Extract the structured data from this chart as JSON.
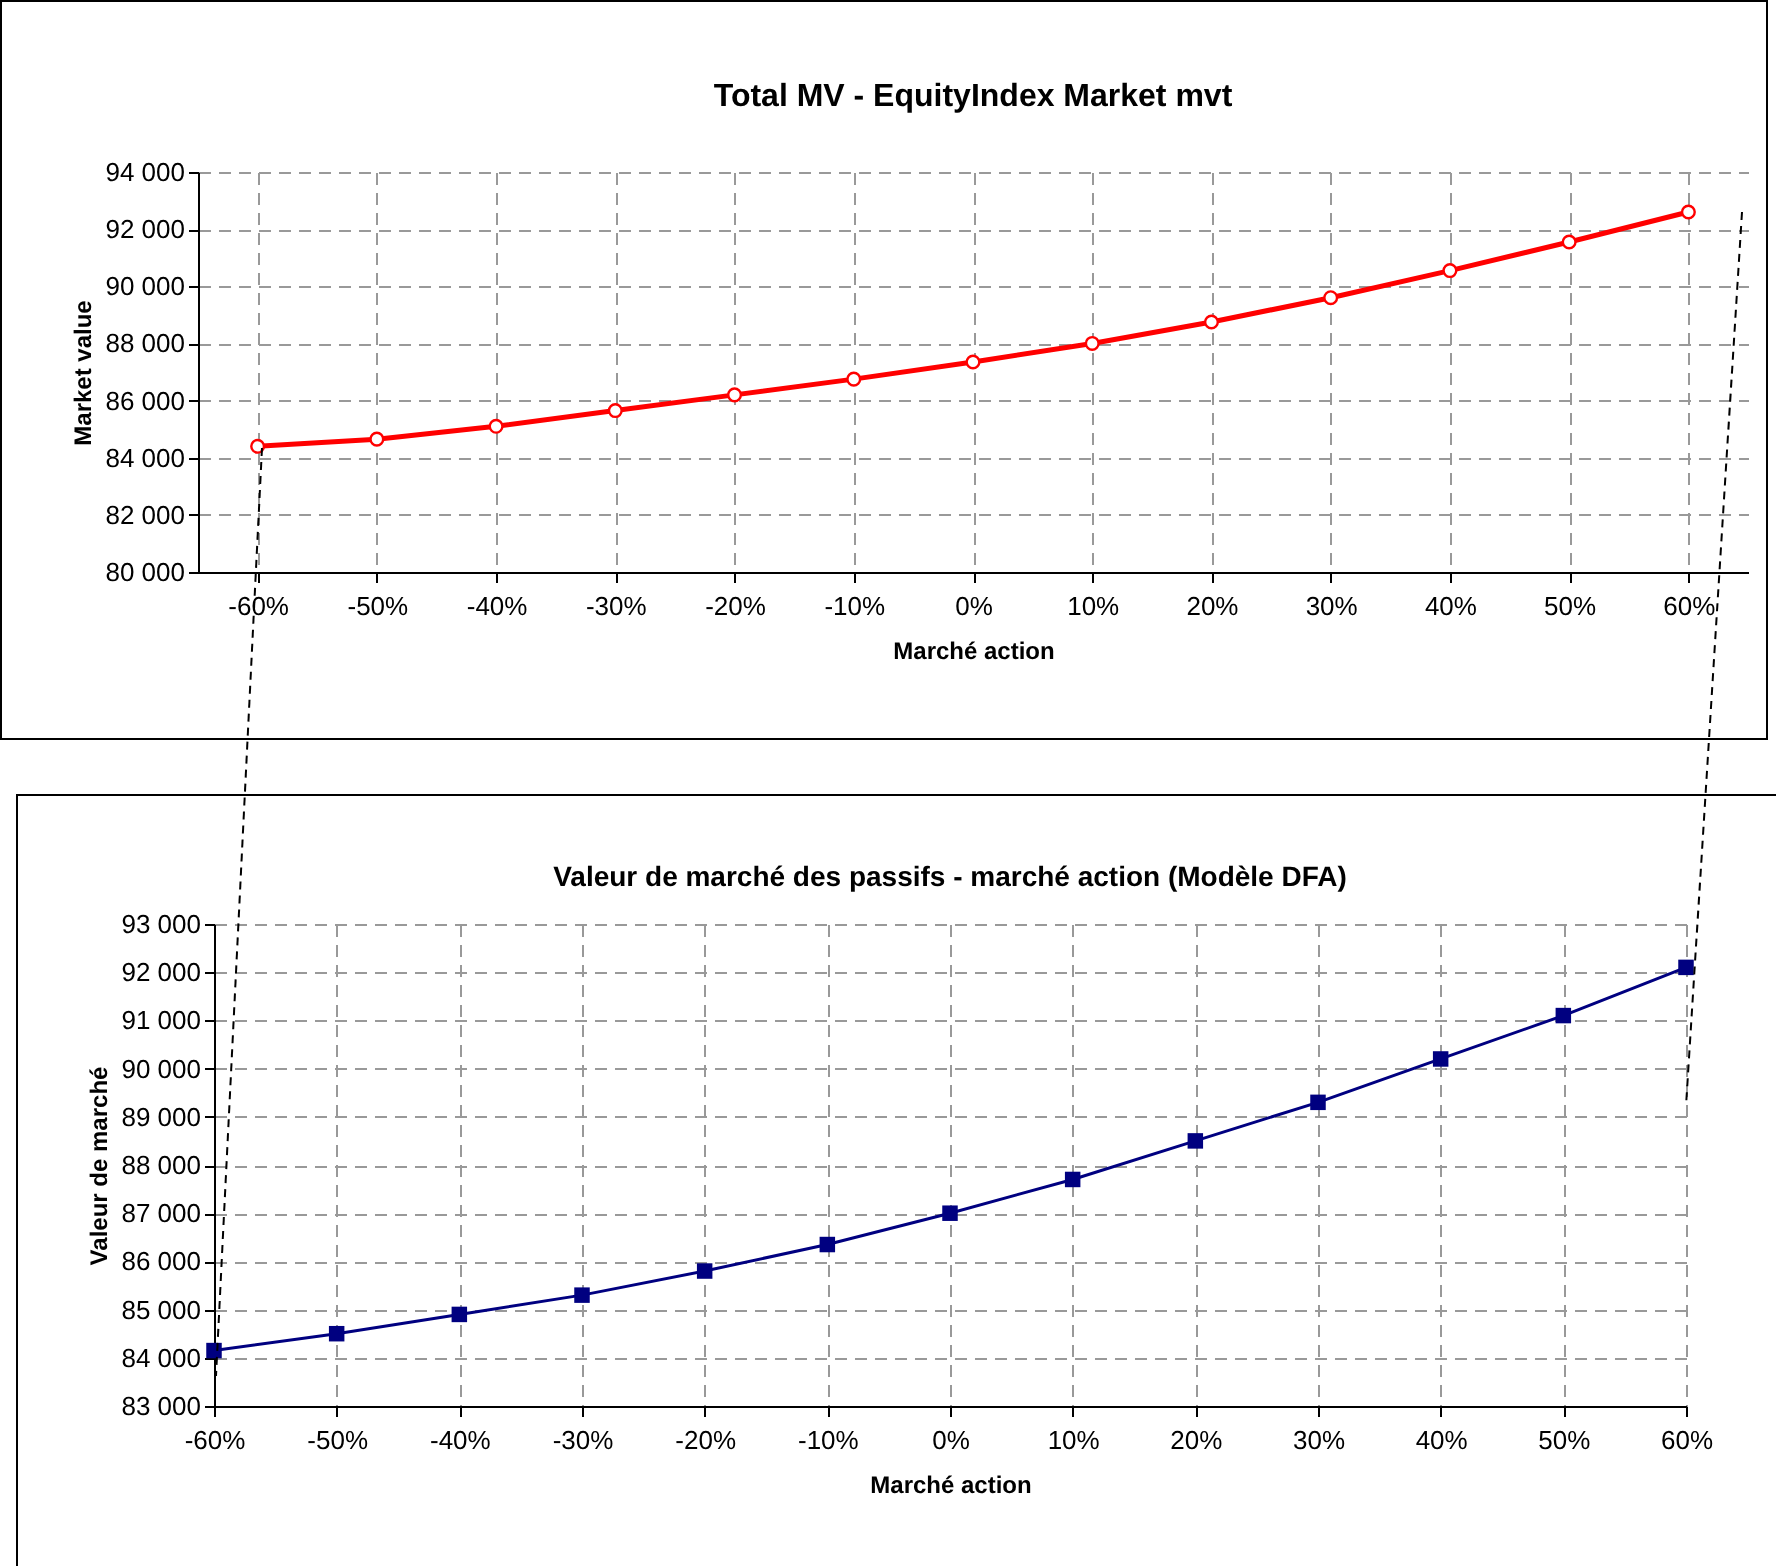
{
  "chart_data": [
    {
      "type": "line",
      "title": "Total MV - EquityIndex Market mvt",
      "xlabel": "Marché action",
      "ylabel": "Market value",
      "categories": [
        "-60%",
        "-50%",
        "-40%",
        "-30%",
        "-20%",
        "-10%",
        "0%",
        "10%",
        "20%",
        "30%",
        "40%",
        "50%",
        "60%"
      ],
      "series": [
        {
          "color": "#ff0000",
          "values": [
            84400,
            84650,
            85100,
            85650,
            86200,
            86750,
            87350,
            88000,
            88750,
            89600,
            90550,
            91550,
            92600
          ]
        }
      ],
      "ylim": [
        80000,
        94000
      ],
      "yticks": [
        {
          "value": 80000,
          "label": "80 000"
        },
        {
          "value": 82000,
          "label": "82 000"
        },
        {
          "value": 84000,
          "label": "84 000"
        },
        {
          "value": 86000,
          "label": "86 000"
        },
        {
          "value": 88000,
          "label": "88 000"
        },
        {
          "value": 90000,
          "label": "90 000"
        },
        {
          "value": 92000,
          "label": "92 000"
        },
        {
          "value": 94000,
          "label": "94 000"
        }
      ],
      "grid": true,
      "marker": "circle"
    },
    {
      "type": "line",
      "title": "Valeur de marché des passifs - marché action (Modèle DFA)",
      "xlabel": "Marché action",
      "ylabel": "Valeur de marché",
      "categories": [
        "-60%",
        "-50%",
        "-40%",
        "-30%",
        "-20%",
        "-10%",
        "0%",
        "10%",
        "20%",
        "30%",
        "40%",
        "50%",
        "60%"
      ],
      "series": [
        {
          "color": "#000080",
          "values": [
            84150,
            84500,
            84900,
            85300,
            85800,
            86350,
            87000,
            87700,
            88500,
            89300,
            90200,
            91100,
            92100
          ]
        }
      ],
      "ylim": [
        83000,
        93000
      ],
      "yticks": [
        {
          "value": 83000,
          "label": "83 000"
        },
        {
          "value": 84000,
          "label": "84 000"
        },
        {
          "value": 85000,
          "label": "85 000"
        },
        {
          "value": 86000,
          "label": "86 000"
        },
        {
          "value": 87000,
          "label": "87 000"
        },
        {
          "value": 88000,
          "label": "88 000"
        },
        {
          "value": 89000,
          "label": "89 000"
        },
        {
          "value": 90000,
          "label": "90 000"
        },
        {
          "value": 91000,
          "label": "91 000"
        },
        {
          "value": 92000,
          "label": "92 000"
        },
        {
          "value": 93000,
          "label": "93 000"
        }
      ],
      "grid": true,
      "marker": "square"
    }
  ]
}
